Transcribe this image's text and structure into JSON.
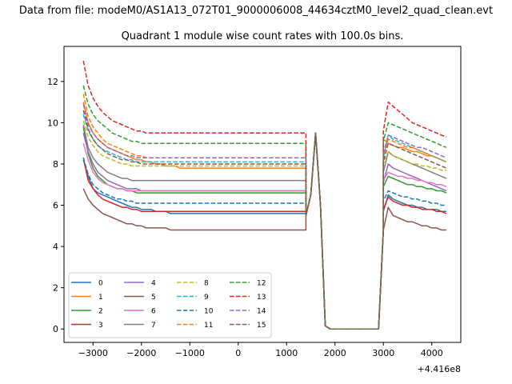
{
  "suptitle": "Data from file: modeM0/AS1A13_072T01_9000006008_44634cztM0_level2_quad_clean.evt",
  "chart_data": {
    "type": "line",
    "title": "Quadrant 1 module wise count rates with 100.0s bins.",
    "xlabel": "",
    "ylabel": "",
    "x_offset_label": "+4.416e8",
    "xlim": [
      -3600,
      4600
    ],
    "ylim": [
      -0.65,
      13.7
    ],
    "x_ticks": [
      -3000,
      -2000,
      -1000,
      0,
      1000,
      2000,
      3000,
      4000
    ],
    "x_tick_labels": [
      "−3000",
      "−2000",
      "−1000",
      "0",
      "1000",
      "2000",
      "3000",
      "4000"
    ],
    "y_ticks": [
      0,
      2,
      4,
      6,
      8,
      10,
      12
    ],
    "y_tick_labels": [
      "0",
      "2",
      "4",
      "6",
      "8",
      "10",
      "12"
    ],
    "grid": false,
    "legend_placement": "lower-left",
    "legend_columns": 4,
    "segment_breaks": [
      {
        "x": 1400,
        "y": 5.5
      },
      {
        "x": 1500,
        "y": 6.5
      },
      {
        "x": 1600,
        "y": 9.5
      },
      {
        "x": 1700,
        "y": 6.0
      },
      {
        "x": 1800,
        "y": 0.15
      },
      {
        "x": 1900,
        "y": 0.0
      },
      {
        "x": 2000,
        "y": 0.0
      },
      {
        "x": 2800,
        "y": 0.0
      },
      {
        "x": 2900,
        "y": 0.0
      },
      {
        "x": 3000,
        "y": 4.8
      }
    ],
    "series": [
      {
        "name": "0",
        "color": "#1f77b4",
        "dash": "solid",
        "left": [
          8.2,
          7.4,
          6.8,
          6.6,
          6.5,
          6.4,
          6.3,
          6.2,
          6.1,
          6.0,
          5.9,
          5.9,
          5.8,
          5.8,
          5.8,
          5.7,
          5.7,
          5.7,
          5.6,
          5.6,
          5.6,
          5.6,
          5.6,
          5.6,
          5.6,
          5.6,
          5.6,
          5.6,
          5.6,
          5.6,
          5.6,
          5.6,
          5.6,
          5.6,
          5.6,
          5.6,
          5.6,
          5.6,
          5.6,
          5.6,
          5.6,
          5.6,
          5.6,
          5.6,
          5.6,
          5.6,
          5.6
        ],
        "right": [
          5.7,
          6.5,
          6.3,
          6.2,
          6.1,
          6.0,
          6.0,
          5.9,
          5.9,
          5.8,
          5.8,
          5.8,
          5.7,
          5.7
        ]
      },
      {
        "name": "1",
        "color": "#ff7f0e",
        "dash": "solid",
        "left": [
          11.0,
          10.0,
          9.5,
          9.2,
          9.0,
          8.8,
          8.7,
          8.6,
          8.5,
          8.4,
          8.3,
          8.2,
          8.2,
          8.1,
          8.1,
          8.0,
          8.0,
          7.9,
          7.9,
          7.9,
          7.8,
          7.8,
          7.8,
          7.8,
          7.8,
          7.8,
          7.8,
          7.8,
          7.8,
          7.8,
          7.8,
          7.8,
          7.8,
          7.8,
          7.8,
          7.8,
          7.8,
          7.8,
          7.8,
          7.8,
          7.8,
          7.8,
          7.8,
          7.8,
          7.8,
          7.8,
          7.8
        ],
        "right": [
          9.2,
          9.0,
          8.9,
          8.8,
          8.8,
          8.7,
          8.6,
          8.6,
          8.5,
          8.4,
          8.4,
          8.3,
          8.2,
          8.1
        ]
      },
      {
        "name": "2",
        "color": "#2ca02c",
        "dash": "solid",
        "left": [
          9.8,
          8.5,
          7.8,
          7.4,
          7.2,
          7.0,
          6.9,
          6.8,
          6.8,
          6.7,
          6.7,
          6.6,
          6.6,
          6.6,
          6.6,
          6.6,
          6.6,
          6.6,
          6.6,
          6.6,
          6.6,
          6.6,
          6.6,
          6.6,
          6.6,
          6.6,
          6.6,
          6.6,
          6.6,
          6.6,
          6.6,
          6.6,
          6.6,
          6.6,
          6.6,
          6.6,
          6.6,
          6.6,
          6.6,
          6.6,
          6.6,
          6.6,
          6.6,
          6.6,
          6.6,
          6.6,
          6.6
        ],
        "right": [
          6.9,
          7.4,
          7.3,
          7.2,
          7.1,
          7.0,
          7.0,
          6.9,
          6.9,
          6.8,
          6.8,
          6.7,
          6.7,
          6.6
        ]
      },
      {
        "name": "3",
        "color": "#d62728",
        "dash": "solid",
        "left": [
          8.3,
          7.2,
          6.8,
          6.5,
          6.3,
          6.2,
          6.1,
          6.0,
          5.9,
          5.9,
          5.8,
          5.8,
          5.7,
          5.7,
          5.7,
          5.7,
          5.7,
          5.7,
          5.7,
          5.7,
          5.7,
          5.7,
          5.7,
          5.7,
          5.7,
          5.7,
          5.7,
          5.7,
          5.7,
          5.7,
          5.7,
          5.7,
          5.7,
          5.7,
          5.7,
          5.7,
          5.7,
          5.7,
          5.7,
          5.7,
          5.7,
          5.7,
          5.7,
          5.7,
          5.7,
          5.7,
          5.7
        ],
        "right": [
          5.8,
          6.4,
          6.2,
          6.1,
          6.0,
          6.0,
          5.9,
          5.9,
          5.8,
          5.8,
          5.8,
          5.7,
          5.7,
          5.6
        ]
      },
      {
        "name": "4",
        "color": "#9467bd",
        "dash": "solid",
        "left": [
          9.5,
          8.6,
          8.0,
          7.6,
          7.4,
          7.2,
          7.1,
          7.0,
          6.9,
          6.8,
          6.8,
          6.8,
          6.7,
          6.7,
          6.7,
          6.7,
          6.7,
          6.7,
          6.7,
          6.7,
          6.7,
          6.7,
          6.7,
          6.7,
          6.7,
          6.7,
          6.7,
          6.7,
          6.7,
          6.7,
          6.7,
          6.7,
          6.7,
          6.7,
          6.7,
          6.7,
          6.7,
          6.7,
          6.7,
          6.7,
          6.7,
          6.7,
          6.7,
          6.7,
          6.7,
          6.7,
          6.7
        ],
        "right": [
          7.1,
          8.0,
          7.8,
          7.7,
          7.6,
          7.5,
          7.4,
          7.3,
          7.2,
          7.1,
          7.0,
          6.9,
          6.8,
          6.7
        ]
      },
      {
        "name": "5",
        "color": "#8c564b",
        "dash": "solid",
        "left": [
          6.8,
          6.3,
          6.0,
          5.8,
          5.6,
          5.5,
          5.4,
          5.3,
          5.2,
          5.1,
          5.1,
          5.0,
          5.0,
          4.9,
          4.9,
          4.9,
          4.9,
          4.9,
          4.8,
          4.8,
          4.8,
          4.8,
          4.8,
          4.8,
          4.8,
          4.8,
          4.8,
          4.8,
          4.8,
          4.8,
          4.8,
          4.8,
          4.8,
          4.8,
          4.8,
          4.8,
          4.8,
          4.8,
          4.8,
          4.8,
          4.8,
          4.8,
          4.8,
          4.8,
          4.8,
          4.8,
          4.8
        ],
        "right": [
          4.8,
          5.9,
          5.5,
          5.4,
          5.3,
          5.2,
          5.2,
          5.1,
          5.0,
          5.0,
          4.9,
          4.9,
          4.8,
          4.8
        ]
      },
      {
        "name": "6",
        "color": "#e377c2",
        "dash": "solid",
        "left": [
          9.0,
          8.2,
          7.6,
          7.3,
          7.1,
          7.0,
          6.9,
          6.8,
          6.8,
          6.7,
          6.7,
          6.7,
          6.7,
          6.7,
          6.7,
          6.7,
          6.7,
          6.7,
          6.7,
          6.7,
          6.7,
          6.7,
          6.7,
          6.7,
          6.7,
          6.7,
          6.7,
          6.7,
          6.7,
          6.7,
          6.7,
          6.7,
          6.7,
          6.7,
          6.7,
          6.7,
          6.7,
          6.7,
          6.7,
          6.7,
          6.7,
          6.7,
          6.7,
          6.7,
          6.7,
          6.7,
          6.7
        ],
        "right": [
          7.2,
          7.6,
          7.5,
          7.4,
          7.4,
          7.3,
          7.3,
          7.2,
          7.2,
          7.1,
          7.1,
          7.0,
          7.0,
          6.9
        ]
      },
      {
        "name": "7",
        "color": "#7f7f7f",
        "dash": "solid",
        "left": [
          9.9,
          8.8,
          8.3,
          8.0,
          7.8,
          7.6,
          7.5,
          7.4,
          7.3,
          7.3,
          7.2,
          7.2,
          7.2,
          7.2,
          7.2,
          7.2,
          7.2,
          7.2,
          7.2,
          7.2,
          7.2,
          7.2,
          7.2,
          7.2,
          7.2,
          7.2,
          7.2,
          7.2,
          7.2,
          7.2,
          7.2,
          7.2,
          7.2,
          7.2,
          7.2,
          7.2,
          7.2,
          7.2,
          7.2,
          7.2,
          7.2,
          7.2,
          7.2,
          7.2,
          7.2,
          7.2,
          7.2
        ],
        "right": [
          7.6,
          8.6,
          8.4,
          8.3,
          8.2,
          8.1,
          8.0,
          7.9,
          7.8,
          7.7,
          7.6,
          7.5,
          7.4,
          7.3
        ]
      },
      {
        "name": "8",
        "color": "#bcbd22",
        "dash": "dashed",
        "left": [
          10.1,
          9.3,
          8.9,
          8.6,
          8.4,
          8.3,
          8.2,
          8.1,
          8.0,
          8.0,
          7.9,
          7.9,
          7.9,
          7.9,
          7.9,
          7.9,
          7.9,
          7.9,
          7.9,
          7.9,
          7.9,
          7.9,
          7.9,
          7.9,
          7.9,
          7.9,
          7.9,
          7.9,
          7.9,
          7.9,
          7.9,
          7.9,
          7.9,
          7.9,
          7.9,
          7.9,
          7.9,
          7.9,
          7.9,
          7.9,
          7.9,
          7.9,
          7.9,
          7.9,
          7.9,
          7.9,
          7.9
        ],
        "right": [
          8.0,
          8.6,
          8.4,
          8.3,
          8.2,
          8.1,
          8.0,
          8.0,
          7.9,
          7.9,
          7.8,
          7.8,
          7.7,
          7.7
        ]
      },
      {
        "name": "9",
        "color": "#17becf",
        "dash": "dashed",
        "left": [
          10.4,
          9.6,
          9.2,
          8.9,
          8.7,
          8.6,
          8.5,
          8.4,
          8.3,
          8.2,
          8.2,
          8.1,
          8.1,
          8.1,
          8.1,
          8.1,
          8.1,
          8.1,
          8.1,
          8.1,
          8.1,
          8.1,
          8.1,
          8.1,
          8.1,
          8.1,
          8.1,
          8.1,
          8.1,
          8.1,
          8.1,
          8.1,
          8.1,
          8.1,
          8.1,
          8.1,
          8.1,
          8.1,
          8.1,
          8.1,
          8.1,
          8.1,
          8.1,
          8.1,
          8.1,
          8.1,
          8.1
        ],
        "right": [
          8.3,
          9.4,
          9.2,
          9.1,
          9.0,
          8.9,
          8.8,
          8.7,
          8.6,
          8.5,
          8.4,
          8.3,
          8.2,
          8.1
        ]
      },
      {
        "name": "10",
        "color": "#1f77b4",
        "dash": "dashed",
        "left": [
          8.3,
          7.5,
          7.0,
          6.8,
          6.6,
          6.5,
          6.4,
          6.3,
          6.3,
          6.2,
          6.2,
          6.1,
          6.1,
          6.1,
          6.1,
          6.1,
          6.1,
          6.1,
          6.1,
          6.1,
          6.1,
          6.1,
          6.1,
          6.1,
          6.1,
          6.1,
          6.1,
          6.1,
          6.1,
          6.1,
          6.1,
          6.1,
          6.1,
          6.1,
          6.1,
          6.1,
          6.1,
          6.1,
          6.1,
          6.1,
          6.1,
          6.1,
          6.1,
          6.1,
          6.1,
          6.1,
          6.1
        ],
        "right": [
          6.2,
          6.7,
          6.6,
          6.5,
          6.4,
          6.4,
          6.3,
          6.3,
          6.2,
          6.2,
          6.1,
          6.1,
          6.0,
          6.0
        ]
      },
      {
        "name": "11",
        "color": "#ff7f0e",
        "dash": "dashed",
        "left": [
          11.4,
          10.3,
          9.8,
          9.5,
          9.2,
          9.0,
          8.9,
          8.8,
          8.7,
          8.6,
          8.5,
          8.4,
          8.4,
          8.3,
          8.3,
          8.3,
          8.3,
          8.3,
          8.3,
          8.3,
          8.3,
          8.3,
          8.3,
          8.3,
          8.3,
          8.3,
          8.3,
          8.3,
          8.3,
          8.3,
          8.3,
          8.3,
          8.3,
          8.3,
          8.3,
          8.3,
          8.3,
          8.3,
          8.3,
          8.3,
          8.3,
          8.3,
          8.3,
          8.3,
          8.3,
          8.3,
          8.3
        ],
        "right": [
          8.4,
          9.2,
          9.1,
          9.0,
          8.9,
          8.8,
          8.8,
          8.7,
          8.6,
          8.5,
          8.4,
          8.3,
          8.2,
          8.1
        ]
      },
      {
        "name": "12",
        "color": "#2ca02c",
        "dash": "dashed",
        "left": [
          11.8,
          10.9,
          10.4,
          10.1,
          9.9,
          9.7,
          9.5,
          9.4,
          9.3,
          9.2,
          9.1,
          9.1,
          9.0,
          9.0,
          9.0,
          9.0,
          9.0,
          9.0,
          9.0,
          9.0,
          9.0,
          9.0,
          9.0,
          9.0,
          9.0,
          9.0,
          9.0,
          9.0,
          9.0,
          9.0,
          9.0,
          9.0,
          9.0,
          9.0,
          9.0,
          9.0,
          9.0,
          9.0,
          9.0,
          9.0,
          9.0,
          9.0,
          9.0,
          9.0,
          9.0,
          9.0,
          9.0
        ],
        "right": [
          9.1,
          10.0,
          9.9,
          9.8,
          9.7,
          9.6,
          9.5,
          9.4,
          9.3,
          9.2,
          9.1,
          9.0,
          8.9,
          8.8
        ]
      },
      {
        "name": "13",
        "color": "#d62728",
        "dash": "dashed",
        "left": [
          13.0,
          11.8,
          11.2,
          10.8,
          10.5,
          10.3,
          10.1,
          10.0,
          9.9,
          9.8,
          9.7,
          9.6,
          9.6,
          9.5,
          9.5,
          9.5,
          9.5,
          9.5,
          9.5,
          9.5,
          9.5,
          9.5,
          9.5,
          9.5,
          9.5,
          9.5,
          9.5,
          9.5,
          9.5,
          9.5,
          9.5,
          9.5,
          9.5,
          9.5,
          9.5,
          9.5,
          9.5,
          9.5,
          9.5,
          9.5,
          9.5,
          9.5,
          9.5,
          9.5,
          9.5,
          9.5,
          9.5
        ],
        "right": [
          9.6,
          11.0,
          10.8,
          10.6,
          10.4,
          10.2,
          10.0,
          9.9,
          9.8,
          9.7,
          9.6,
          9.5,
          9.4,
          9.3
        ]
      },
      {
        "name": "14",
        "color": "#9467bd",
        "dash": "dashed",
        "left": [
          10.9,
          9.9,
          9.5,
          9.2,
          9.0,
          8.8,
          8.7,
          8.6,
          8.5,
          8.4,
          8.4,
          8.3,
          8.3,
          8.3,
          8.3,
          8.3,
          8.3,
          8.3,
          8.3,
          8.3,
          8.3,
          8.3,
          8.3,
          8.3,
          8.3,
          8.3,
          8.3,
          8.3,
          8.3,
          8.3,
          8.3,
          8.3,
          8.3,
          8.3,
          8.3,
          8.3,
          8.3,
          8.3,
          8.3,
          8.3,
          8.3,
          8.3,
          8.3,
          8.3,
          8.3,
          8.3,
          8.3
        ],
        "right": [
          8.5,
          9.4,
          9.3,
          9.2,
          9.1,
          9.0,
          8.9,
          8.8,
          8.8,
          8.7,
          8.6,
          8.5,
          8.4,
          8.3
        ]
      },
      {
        "name": "15",
        "color": "#8c564b",
        "dash": "dashed",
        "left": [
          10.6,
          9.7,
          9.2,
          8.9,
          8.7,
          8.5,
          8.4,
          8.3,
          8.2,
          8.2,
          8.1,
          8.1,
          8.0,
          8.0,
          8.0,
          8.0,
          8.0,
          8.0,
          8.0,
          8.0,
          8.0,
          8.0,
          8.0,
          8.0,
          8.0,
          8.0,
          8.0,
          8.0,
          8.0,
          8.0,
          8.0,
          8.0,
          8.0,
          8.0,
          8.0,
          8.0,
          8.0,
          8.0,
          8.0,
          8.0,
          8.0,
          8.0,
          8.0,
          8.0,
          8.0,
          8.0,
          8.0
        ],
        "right": [
          8.1,
          9.0,
          8.9,
          8.8,
          8.7,
          8.6,
          8.5,
          8.4,
          8.3,
          8.2,
          8.1,
          8.0,
          7.9,
          7.8
        ]
      }
    ]
  }
}
